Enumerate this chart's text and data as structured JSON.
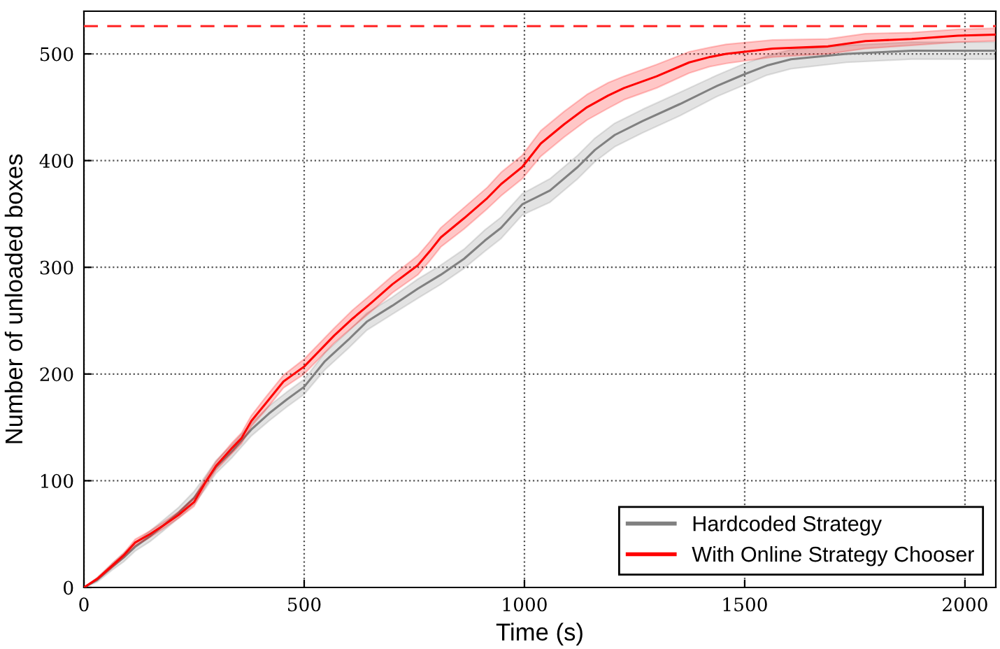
{
  "chart_data": {
    "type": "line",
    "xlabel": "Time (s)",
    "ylabel": "Number of unloaded boxes",
    "xlim": [
      0,
      2070
    ],
    "ylim": [
      0,
      540
    ],
    "xticks": [
      0,
      500,
      1000,
      1500,
      2000
    ],
    "yticks": [
      0,
      100,
      200,
      300,
      400,
      500
    ],
    "grid": true,
    "legend": "bottom right",
    "line_style": "solid",
    "marker": "none",
    "ref_lines": [
      {
        "axis": "y",
        "value": 526,
        "color": "#ff3333",
        "line_style": "dashed"
      }
    ],
    "series": [
      {
        "name": "Hardcoded Strategy",
        "color": "#808080",
        "x": [
          0,
          30,
          63,
          90,
          116,
          150,
          180,
          215,
          250,
          275,
          300,
          337,
          380,
          420,
          460,
          500,
          547,
          600,
          642,
          700,
          758,
          810,
          863,
          910,
          947,
          995,
          1058,
          1121,
          1160,
          1205,
          1268,
          1353,
          1437,
          1500,
          1550,
          1605,
          1731,
          1879,
          1984,
          2068
        ],
        "values": [
          0,
          7,
          19,
          28,
          38,
          48,
          58,
          70,
          84,
          98,
          113,
          128,
          148,
          163,
          176,
          188,
          212,
          232,
          249,
          264,
          280,
          293,
          308,
          325,
          337,
          359,
          372,
          394,
          410,
          424,
          437,
          453,
          470,
          481,
          489,
          495,
          500,
          503,
          503,
          503
        ],
        "lower": [
          0,
          5,
          16,
          24,
          34,
          43,
          53,
          65,
          78,
          92,
          107,
          122,
          142,
          156,
          169,
          181,
          204,
          224,
          241,
          256,
          271,
          284,
          299,
          315,
          327,
          349,
          361,
          383,
          399,
          413,
          426,
          442,
          460,
          471,
          480,
          486,
          492,
          495,
          495,
          495
        ],
        "upper": [
          0,
          9,
          22,
          32,
          42,
          53,
          63,
          75,
          90,
          104,
          119,
          134,
          154,
          170,
          183,
          195,
          220,
          240,
          257,
          272,
          289,
          302,
          317,
          335,
          347,
          369,
          383,
          405,
          421,
          435,
          448,
          464,
          480,
          491,
          498,
          504,
          508,
          511,
          511,
          511
        ]
      },
      {
        "name": "With Online Strategy Chooser",
        "color": "#ff0000",
        "x": [
          0,
          30,
          63,
          90,
          116,
          150,
          180,
          215,
          250,
          275,
          300,
          337,
          358,
          380,
          410,
          453,
          500,
          568,
          610,
          653,
          700,
          758,
          785,
          810,
          863,
          916,
          947,
          995,
          1037,
          1090,
          1142,
          1190,
          1226,
          1300,
          1374,
          1420,
          1458,
          1563,
          1689,
          1774,
          1879,
          1984,
          2068
        ],
        "values": [
          0,
          8,
          20,
          30,
          42,
          50,
          58,
          68,
          80,
          98,
          114,
          131,
          140,
          156,
          171,
          193,
          207,
          236,
          252,
          267,
          284,
          302,
          315,
          328,
          346,
          365,
          378,
          394,
          416,
          434,
          450,
          461,
          468,
          479,
          492,
          497,
          500,
          505,
          507,
          512,
          514,
          517,
          518
        ],
        "lower": [
          0,
          7,
          18,
          28,
          39,
          47,
          55,
          65,
          76,
          94,
          110,
          126,
          135,
          151,
          165,
          187,
          200,
          229,
          244,
          259,
          276,
          293,
          306,
          319,
          336,
          355,
          367,
          383,
          404,
          422,
          438,
          449,
          457,
          468,
          482,
          488,
          491,
          497,
          500,
          505,
          508,
          511,
          512
        ],
        "upper": [
          0,
          9,
          22,
          32,
          45,
          53,
          61,
          71,
          84,
          102,
          118,
          136,
          145,
          161,
          177,
          199,
          214,
          243,
          260,
          275,
          292,
          311,
          324,
          337,
          356,
          375,
          389,
          405,
          428,
          446,
          462,
          473,
          479,
          490,
          502,
          506,
          509,
          513,
          514,
          519,
          520,
          523,
          524
        ]
      }
    ]
  }
}
